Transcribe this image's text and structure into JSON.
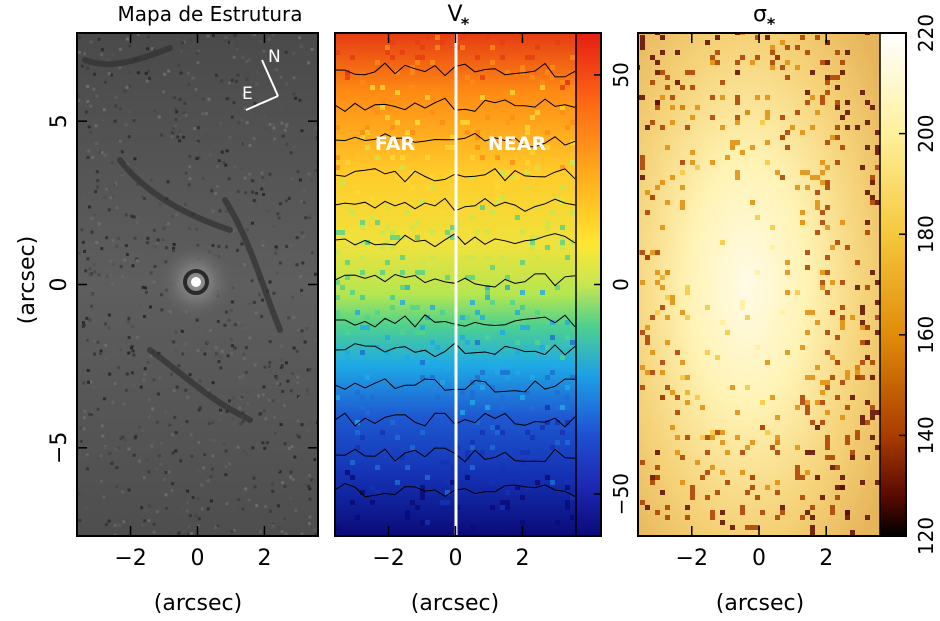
{
  "chart_data": [
    {
      "type": "heatmap",
      "title": "Mapa de Estrutura",
      "xlabel": "(arcsec)",
      "ylabel": "(arcsec)",
      "xlim": [
        -3.6,
        3.6
      ],
      "ylim": [
        -7.7,
        7.7
      ],
      "x_ticks": [
        "−2",
        "0",
        "2"
      ],
      "y_ticks": [
        "5",
        "0",
        "−5"
      ],
      "annotations": {
        "north": "N",
        "east": "E"
      },
      "colormap": "grayscale",
      "colors": {
        "background": "#555555",
        "nucleus": "#ffffff"
      }
    },
    {
      "type": "heatmap",
      "title": "V",
      "title_subscript": "*",
      "xlabel": "(arcsec)",
      "xlim": [
        -3.6,
        3.6
      ],
      "ylim": [
        -7.7,
        7.7
      ],
      "x_ticks": [
        "−2",
        "0",
        "2"
      ],
      "annotations": {
        "far_side": "FAR",
        "near_side": "NEAR"
      },
      "colorbar": {
        "min": -60,
        "max": 60,
        "ticks": [
          "50",
          "0",
          "−50"
        ]
      },
      "colormap": [
        "#0a0a78",
        "#1e3cc8",
        "#1ea0e6",
        "#50d28c",
        "#c8e650",
        "#ffd732",
        "#ff8c14",
        "#e61e14"
      ]
    },
    {
      "type": "heatmap",
      "title": "σ",
      "title_subscript": "*",
      "xlabel": "(arcsec)",
      "xlim": [
        -3.6,
        3.6
      ],
      "ylim": [
        -7.7,
        7.7
      ],
      "x_ticks": [
        "−2",
        "0",
        "2"
      ],
      "colorbar": {
        "min": 120,
        "max": 220,
        "ticks": [
          "220",
          "200",
          "180",
          "160",
          "140",
          "120"
        ]
      },
      "colormap": [
        "#000000",
        "#5a0a00",
        "#aa3c00",
        "#e08c0a",
        "#f5c83c",
        "#fff09b",
        "#ffffff"
      ]
    }
  ]
}
